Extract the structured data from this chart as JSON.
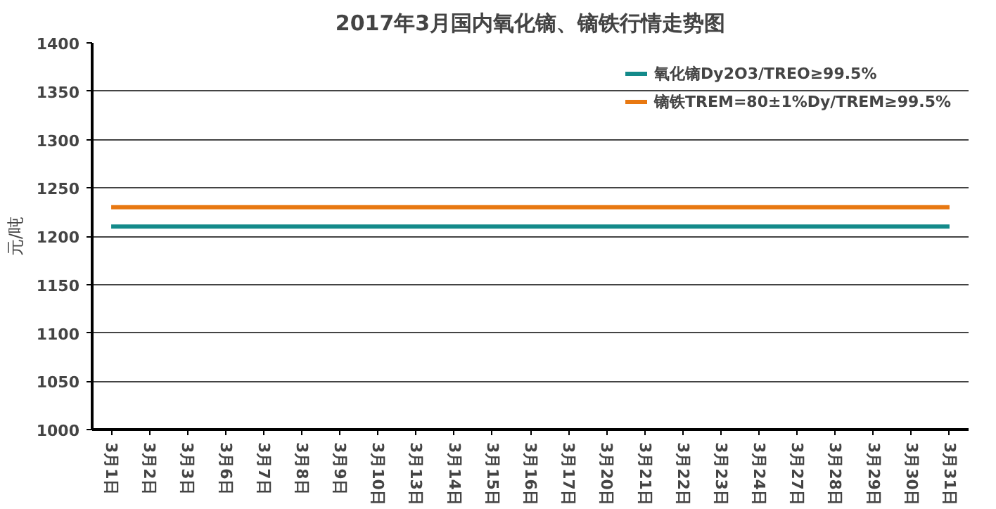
{
  "chart_data": {
    "type": "line",
    "title": "2017年3月国内氧化镝、镝铁行情走势图",
    "ylabel": "元/吨",
    "categories": [
      "3月1日",
      "3月2日",
      "3月3日",
      "3月6日",
      "3月7日",
      "3月8日",
      "3月9日",
      "3月10日",
      "3月13日",
      "3月14日",
      "3月15日",
      "3月16日",
      "3月17日",
      "3月20日",
      "3月21日",
      "3月22日",
      "3月23日",
      "3月24日",
      "3月27日",
      "3月28日",
      "3月29日",
      "3月30日",
      "3月31日"
    ],
    "series": [
      {
        "name": "氧化镝Dy2O3/TREO≥99.5%",
        "color": "#138a8a",
        "values": [
          1210,
          1210,
          1210,
          1210,
          1210,
          1210,
          1210,
          1210,
          1210,
          1210,
          1210,
          1210,
          1210,
          1210,
          1210,
          1210,
          1210,
          1210,
          1210,
          1210,
          1210,
          1210,
          1210
        ]
      },
      {
        "name": "镝铁TREM=80±1%Dy/TREM≥99.5%",
        "color": "#e87811",
        "values": [
          1230,
          1230,
          1230,
          1230,
          1230,
          1230,
          1230,
          1230,
          1230,
          1230,
          1230,
          1230,
          1230,
          1230,
          1230,
          1230,
          1230,
          1230,
          1230,
          1230,
          1230,
          1230,
          1230
        ]
      }
    ],
    "ylim": [
      1000,
      1400
    ],
    "yticks": [
      1000,
      1050,
      1100,
      1150,
      1200,
      1250,
      1300,
      1350,
      1400
    ],
    "grid": "y",
    "legend": "top right",
    "marker": "none",
    "line_style": "solid"
  }
}
